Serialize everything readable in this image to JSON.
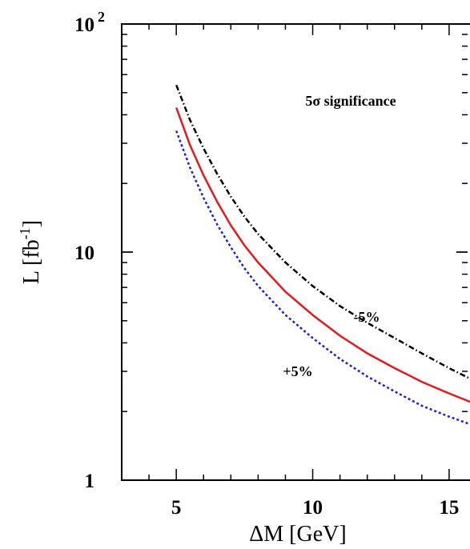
{
  "chart_data": {
    "type": "line",
    "xlabel": "ΔM [GeV]",
    "ylabel_main": "L [fb",
    "ylabel_sup": "-1",
    "ylabel_close": "]",
    "xlim": [
      3,
      16
    ],
    "ylim": [
      1,
      100
    ],
    "ylog": true,
    "x_ticks": [
      {
        "value": 5,
        "label": "5"
      },
      {
        "value": 10,
        "label": "10"
      },
      {
        "value": 15,
        "label": "15"
      }
    ],
    "y_ticks": [
      {
        "value": 1,
        "label": "1",
        "sup": ""
      },
      {
        "value": 10,
        "label": "10",
        "sup": ""
      },
      {
        "value": 100,
        "label": "10",
        "sup": "2"
      }
    ],
    "annotation": "5σ significance",
    "series": [
      {
        "key": "minus",
        "curve_label": "-5%",
        "color": "#000000",
        "style": "dash-dot",
        "x": [
          5,
          5.5,
          6,
          6.5,
          7,
          7.5,
          8,
          9,
          10,
          11,
          12,
          13,
          14,
          15,
          16
        ],
        "y": [
          54,
          38,
          28.5,
          22,
          17.5,
          14.3,
          12.0,
          9.0,
          7.1,
          5.8,
          4.9,
          4.2,
          3.6,
          3.1,
          2.7
        ]
      },
      {
        "key": "central",
        "curve_label": "",
        "color": "#e41a1c",
        "style": "solid",
        "x": [
          5,
          5.5,
          6,
          6.5,
          7,
          7.5,
          8,
          9,
          10,
          11,
          12,
          13,
          14,
          15,
          16
        ],
        "y": [
          43,
          29.5,
          21.7,
          16.6,
          13.1,
          10.7,
          9.0,
          6.7,
          5.3,
          4.3,
          3.6,
          3.1,
          2.7,
          2.4,
          2.15
        ]
      },
      {
        "key": "plus",
        "curve_label": "+5%",
        "color": "#1f1fd6",
        "style": "dotted",
        "x": [
          5,
          5.5,
          6,
          6.5,
          7,
          7.5,
          8,
          9,
          10,
          11,
          12,
          13,
          14,
          15,
          16
        ],
        "y": [
          34,
          23.5,
          17.3,
          13.2,
          10.5,
          8.5,
          7.1,
          5.3,
          4.2,
          3.4,
          2.85,
          2.45,
          2.12,
          1.9,
          1.72
        ]
      }
    ]
  }
}
